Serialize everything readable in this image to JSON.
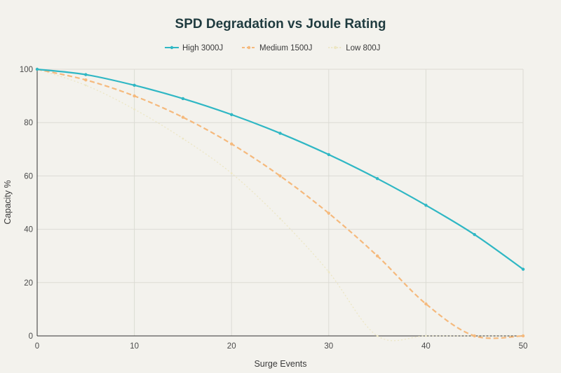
{
  "chart_data": {
    "type": "line",
    "title": "SPD Degradation vs Joule Rating",
    "xlabel": "Surge Events",
    "ylabel": "Capacity %",
    "xlim": [
      0,
      50
    ],
    "ylim": [
      0,
      100
    ],
    "xticks": [
      0,
      10,
      20,
      30,
      40,
      50
    ],
    "yticks": [
      0,
      20,
      40,
      60,
      80,
      100
    ],
    "grid": true,
    "legend_position": "top-center",
    "series": [
      {
        "name": "High 3000J",
        "color": "#2fb7c4",
        "style": "solid",
        "x": [
          0,
          5,
          10,
          15,
          20,
          25,
          30,
          35,
          40,
          45,
          50
        ],
        "values": [
          100,
          98,
          94,
          89,
          83,
          76,
          68,
          59,
          49,
          38,
          25
        ]
      },
      {
        "name": "Medium 1500J",
        "color": "#f5b97c",
        "style": "dashed",
        "x": [
          0,
          5,
          10,
          15,
          20,
          25,
          30,
          35,
          40,
          45,
          50
        ],
        "values": [
          100,
          96,
          90,
          82,
          72,
          60,
          46,
          30,
          12,
          0,
          0
        ]
      },
      {
        "name": "Low 800J",
        "color": "#ece6c4",
        "style": "dotted",
        "x": [
          0,
          5,
          10,
          15,
          20,
          25,
          30,
          35,
          40,
          45,
          50
        ],
        "values": [
          100,
          94,
          85,
          74,
          61,
          44,
          24,
          0,
          0,
          0,
          0
        ]
      }
    ]
  }
}
